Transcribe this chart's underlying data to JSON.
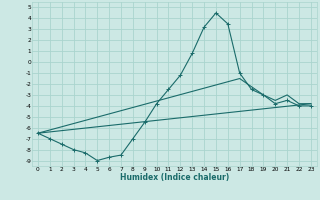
{
  "xlabel": "Humidex (Indice chaleur)",
  "bg_color": "#cce8e4",
  "line_color": "#1a6b6a",
  "grid_color": "#aad4ce",
  "xlim": [
    -0.5,
    23.5
  ],
  "ylim": [
    -9.5,
    5.5
  ],
  "xticks": [
    0,
    1,
    2,
    3,
    4,
    5,
    6,
    7,
    8,
    9,
    10,
    11,
    12,
    13,
    14,
    15,
    16,
    17,
    18,
    19,
    20,
    21,
    22,
    23
  ],
  "yticks": [
    5,
    4,
    3,
    2,
    1,
    0,
    -1,
    -2,
    -3,
    -4,
    -5,
    -6,
    -7,
    -8,
    -9
  ],
  "curve1_x": [
    0,
    1,
    2,
    3,
    4,
    5,
    6,
    7,
    8,
    9,
    10,
    11,
    12,
    13,
    14,
    15,
    16,
    17,
    18,
    19,
    20,
    21,
    22,
    23
  ],
  "curve1_y": [
    -6.5,
    -7.0,
    -7.5,
    -8.0,
    -8.3,
    -9.0,
    -8.7,
    -8.5,
    -7.0,
    -5.5,
    -3.8,
    -2.5,
    -1.2,
    0.8,
    3.2,
    4.5,
    3.5,
    -1.0,
    -2.5,
    -3.0,
    -3.8,
    -3.5,
    -4.0,
    -4.0
  ],
  "curve2_x": [
    0,
    23
  ],
  "curve2_y": [
    -6.5,
    -3.8
  ],
  "curve3_x": [
    0,
    17,
    19,
    20,
    21,
    22,
    23
  ],
  "curve3_y": [
    -6.5,
    -1.5,
    -3.0,
    -3.5,
    -3.0,
    -3.8,
    -3.8
  ],
  "xlabel_fontsize": 5.5,
  "tick_fontsize": 4.2
}
